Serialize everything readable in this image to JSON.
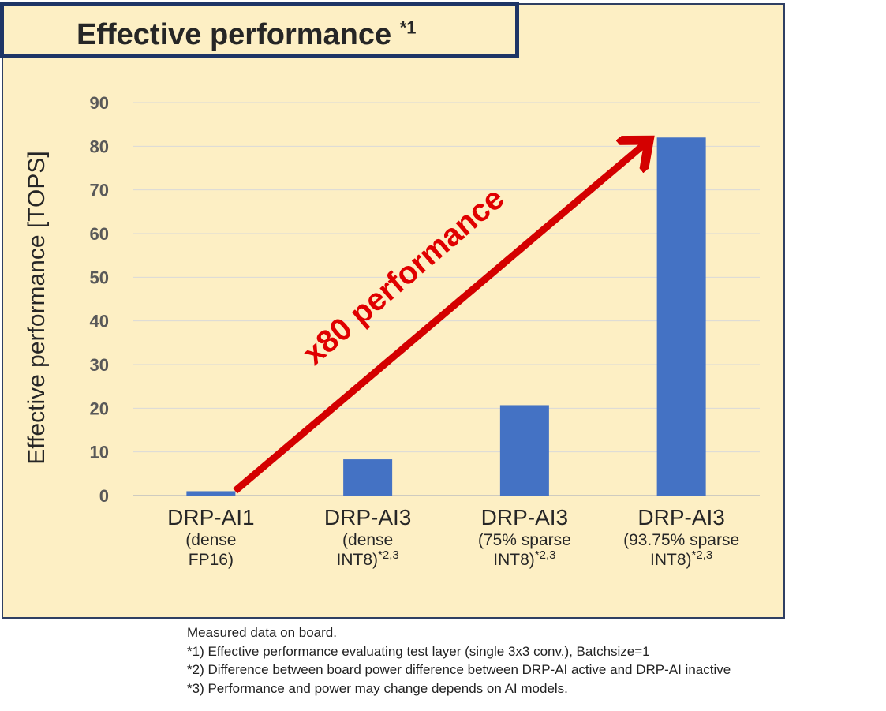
{
  "title": {
    "text": "Effective performance ",
    "superscript": "*1"
  },
  "annotation": {
    "text": "x80 performance",
    "color": "#e00000"
  },
  "footnotes": [
    "Measured data on board.",
    "*1) Effective performance evaluating test layer (single 3x3 conv.),   Batchsize=1",
    "*2) Difference between board power difference between DRP-AI active and DRP-AI inactive",
    "*3) Performance and power may change depends on AI models."
  ],
  "category_labels": [
    {
      "main": "DRP-AI1",
      "sub1": "(dense",
      "sub2": "FP16)",
      "sup": ""
    },
    {
      "main": "DRP-AI3",
      "sub1": "(dense",
      "sub2": "INT8)",
      "sup": "*2,3"
    },
    {
      "main": "DRP-AI3",
      "sub1": "(75% sparse",
      "sub2": "INT8)",
      "sup": "*2,3"
    },
    {
      "main": "DRP-AI3",
      "sub1": "(93.75% sparse",
      "sub2": "INT8)",
      "sup": "*2,3"
    }
  ],
  "colors": {
    "bar": "#4472c4",
    "panel": "#fdefc4",
    "arrow": "#d40000",
    "grid": "#d9d9d9"
  },
  "chart_data": {
    "type": "bar",
    "categories": [
      "DRP-AI1 (dense FP16)",
      "DRP-AI3 (dense INT8)*2,3",
      "DRP-AI3 (75% sparse INT8)*2,3",
      "DRP-AI3 (93.75% sparse INT8)*2,3"
    ],
    "values": [
      1,
      8.3,
      20.7,
      82
    ],
    "ylabel": "Effective performance [TOPS]",
    "ylim": [
      0,
      90
    ],
    "yticks": [
      0,
      10,
      20,
      30,
      40,
      50,
      60,
      70,
      80,
      90
    ],
    "grid": true,
    "legend": "none"
  }
}
